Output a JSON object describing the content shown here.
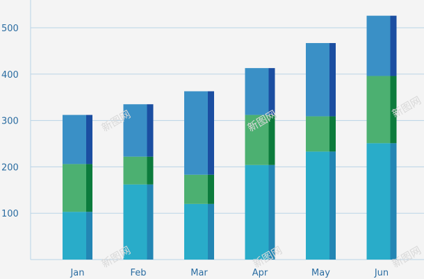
{
  "chart_data": {
    "type": "bar",
    "stacked": true,
    "categories": [
      "Jan",
      "Feb",
      "Mar",
      "Apr",
      "May",
      "Jun"
    ],
    "series": [
      {
        "values": [
          103,
          162,
          120,
          204,
          233,
          251
        ],
        "color": "#29acc9",
        "side_color": "#2386b4"
      },
      {
        "values": [
          103,
          60,
          63,
          108,
          76,
          145
        ],
        "color": "#4cb071",
        "side_color": "#0c7b3c"
      },
      {
        "values": [
          106,
          113,
          180,
          101,
          158,
          130
        ],
        "color": "#3a90c6",
        "side_color": "#1b4ea1"
      }
    ],
    "yticks": [
      100,
      200,
      300,
      400,
      500
    ],
    "ylim": [
      0,
      560
    ],
    "grid": true,
    "gridline_color": "#b9d3e6",
    "watermark": "新图网"
  }
}
